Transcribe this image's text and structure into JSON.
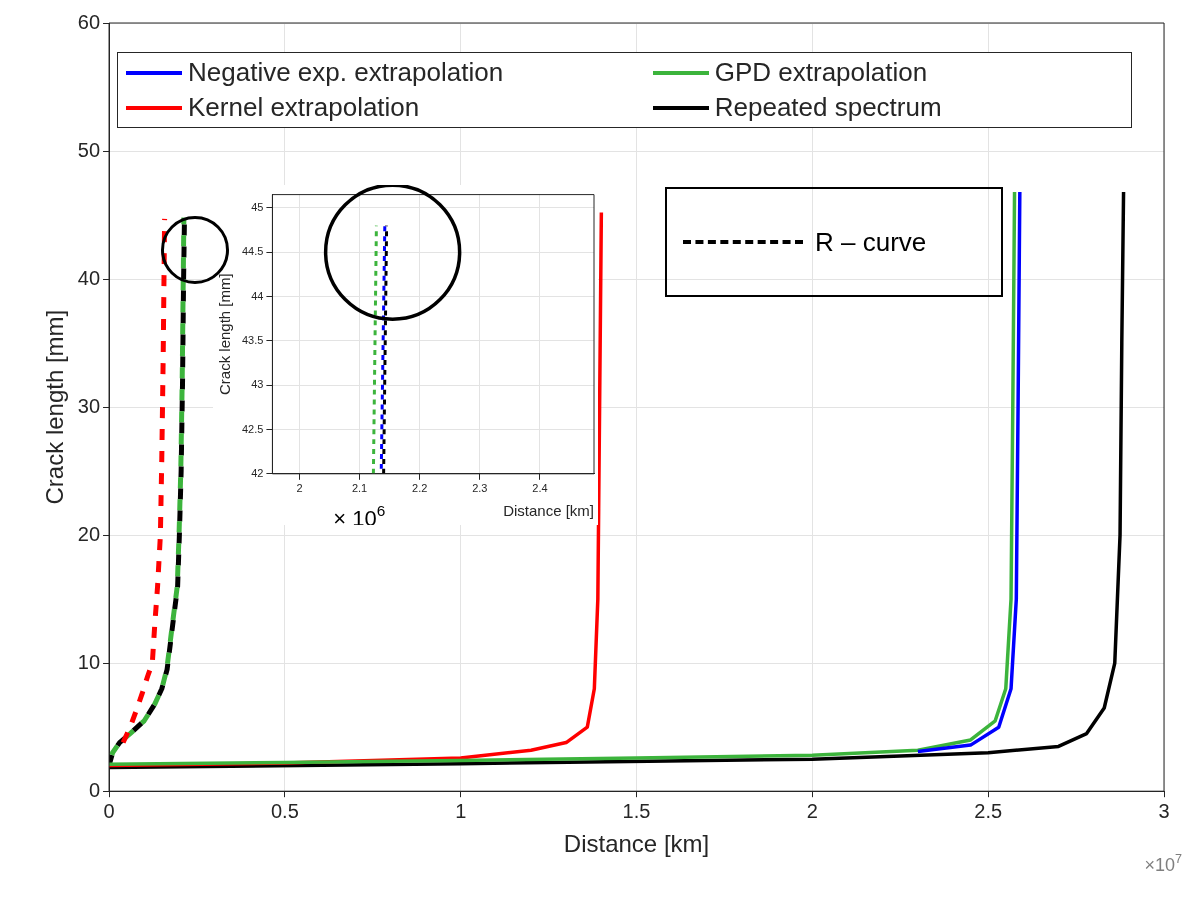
{
  "chart_data": [
    {
      "type": "line",
      "xlabel": "Distance [km]",
      "ylabel": "Crack length [mm]",
      "xlim": [
        0,
        3
      ],
      "ylim": [
        0,
        60
      ],
      "xticks": [
        0,
        0.5,
        1,
        1.5,
        2,
        2.5,
        3
      ],
      "yticks": [
        0,
        10,
        20,
        30,
        40,
        50,
        60
      ],
      "grid": true,
      "legend": "top",
      "marker": "none",
      "annotations": [
        "×10$^{7}$",
        "R – curve"
      ],
      "series": [
        {
          "name": "Negative exp. extrapolation",
          "color": "#0000ff",
          "line_style": "solid",
          "x": [
            2.3,
            2.45,
            2.53,
            2.565,
            2.58,
            2.585,
            2.59
          ],
          "values": [
            3.1,
            3.6,
            5,
            8,
            15,
            30,
            46.8
          ]
        },
        {
          "name": "GPD extrapolation",
          "color": "#3cb43c",
          "line_style": "solid",
          "x": [
            0,
            0.5,
            1,
            1.5,
            2,
            2.3,
            2.45,
            2.52,
            2.55,
            2.565,
            2.57,
            2.575
          ],
          "values": [
            2.1,
            2.25,
            2.4,
            2.6,
            2.8,
            3.2,
            4,
            5.5,
            8,
            15,
            30,
            46.8
          ]
        },
        {
          "name": "Kernel extrapolation",
          "color": "#ff0000",
          "line_style": "solid",
          "x": [
            0,
            0.5,
            1,
            1.2,
            1.3,
            1.36,
            1.38,
            1.39,
            1.395,
            1.4
          ],
          "values": [
            2,
            2.2,
            2.6,
            3.2,
            3.8,
            5,
            8,
            15,
            30,
            45.2
          ]
        },
        {
          "name": "Repeated spectrum",
          "color": "#000000",
          "line_style": "solid",
          "x": [
            0,
            1,
            2,
            2.5,
            2.7,
            2.78,
            2.83,
            2.86,
            2.875,
            2.88,
            2.885
          ],
          "values": [
            1.85,
            2.15,
            2.5,
            3,
            3.5,
            4.5,
            6.5,
            10,
            20,
            35,
            46.8
          ]
        },
        {
          "color": "#ff0000",
          "line_style": "dashed",
          "x": [
            0.04,
            0.06,
            0.08,
            0.095,
            0.11,
            0.123,
            0.13,
            0.138,
            0.146,
            0.15,
            0.154,
            0.158
          ],
          "values": [
            3.8,
            5,
            6.5,
            7.7,
            9,
            10,
            13,
            16,
            20,
            26,
            34,
            44.7
          ]
        },
        {
          "color": "#3cb43c",
          "line_style": "dashed",
          "x": [
            0,
            0.01,
            0.03,
            0.06,
            0.1,
            0.13,
            0.15,
            0.164,
            0.171,
            0.18,
            0.194,
            0.199,
            0.204,
            0.208,
            0.211,
            0.2128
          ],
          "values": [
            2,
            3,
            3.8,
            4.5,
            5.5,
            6.8,
            8,
            9.5,
            11,
            13,
            16,
            20,
            25,
            32,
            40,
            44.8
          ]
        },
        {
          "color": "#000000",
          "line_style": "dashed",
          "x": [
            0,
            0.01,
            0.03,
            0.06,
            0.1,
            0.13,
            0.15,
            0.165,
            0.172,
            0.181,
            0.195,
            0.2,
            0.205,
            0.209,
            0.212,
            0.2145
          ],
          "values": [
            2,
            3,
            3.8,
            4.5,
            5.5,
            6.8,
            8,
            9.5,
            11,
            13,
            16,
            20,
            25,
            32,
            40,
            44.8
          ]
        }
      ]
    },
    {
      "type": "line",
      "xlabel": "Distance [km]",
      "ylabel": "Crack length [mm]",
      "xlim": [
        1.955,
        2.49
      ],
      "ylim": [
        42,
        45.15
      ],
      "xticks": [
        2,
        2.1,
        2.2,
        2.3,
        2.4
      ],
      "yticks": [
        42,
        42.5,
        43,
        43.5,
        44,
        44.5,
        45
      ],
      "grid": true,
      "marker": "none",
      "annotations": [
        "× 10$^{6}$"
      ],
      "series": [
        {
          "color": "#3cb43c",
          "line_style": "dashed",
          "x": [
            2.123,
            2.128
          ],
          "values": [
            42,
            44.8
          ]
        },
        {
          "color": "#0000ff",
          "line_style": "dashed",
          "x": [
            2.136,
            2.142
          ],
          "values": [
            42,
            44.8
          ]
        },
        {
          "color": "#000000",
          "line_style": "dashed",
          "x": [
            2.14,
            2.145
          ],
          "values": [
            42,
            44.8
          ]
        }
      ]
    }
  ]
}
